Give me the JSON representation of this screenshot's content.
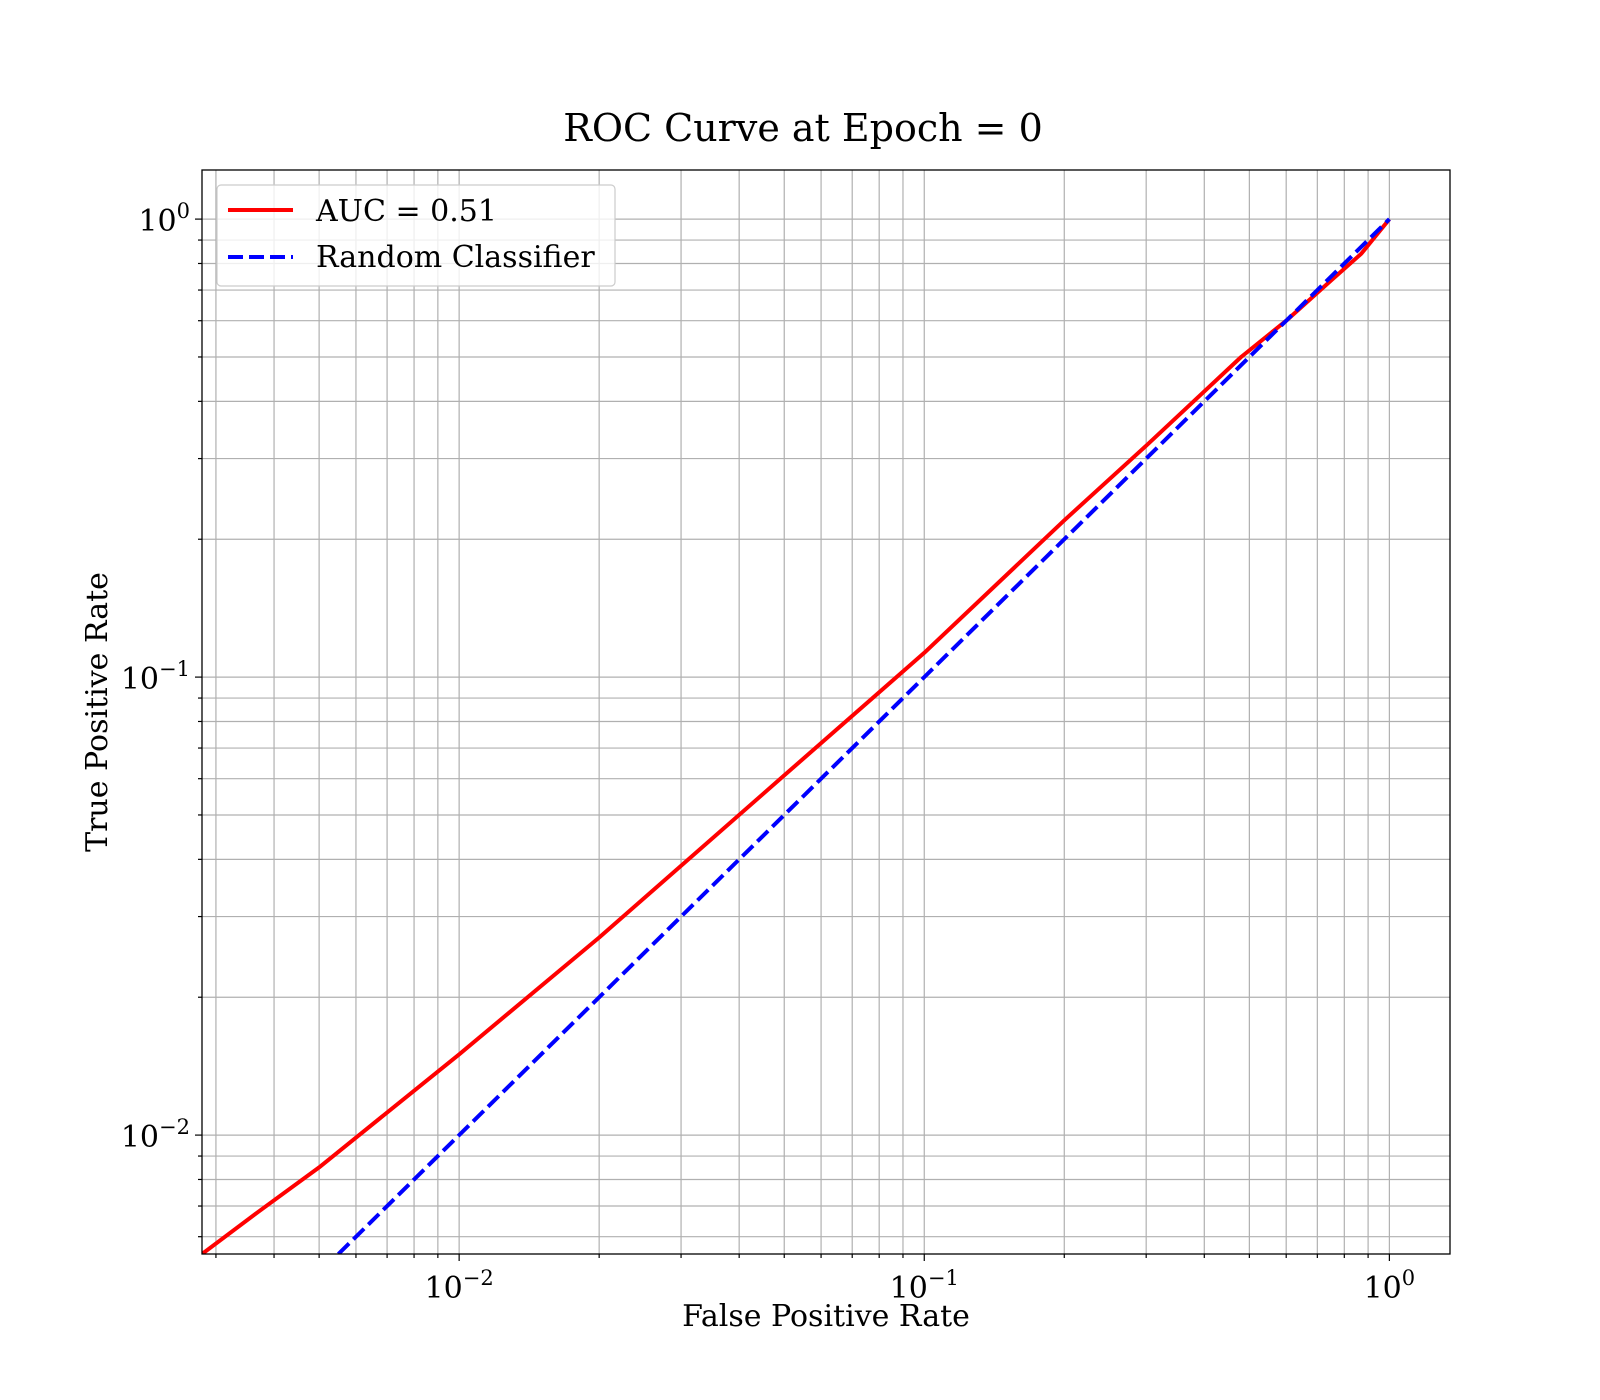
{
  "chart_data": {
    "type": "line",
    "title": "ROC Curve at Epoch = 0",
    "xlabel": "False Positive Rate",
    "ylabel": "True Positive Rate",
    "xscale": "log",
    "yscale": "log",
    "xlim": [
      0.0028,
      1.35
    ],
    "ylim": [
      0.0055,
      1.28
    ],
    "grid": true,
    "grid_minor": true,
    "legend_position": "upper left",
    "x_ticks": [
      {
        "value": 0.01,
        "base": "10",
        "exp": "−2"
      },
      {
        "value": 0.1,
        "base": "10",
        "exp": "−1"
      },
      {
        "value": 1,
        "base": "10",
        "exp": "0"
      }
    ],
    "y_ticks": [
      {
        "value": 0.01,
        "base": "10",
        "exp": "−2"
      },
      {
        "value": 0.1,
        "base": "10",
        "exp": "−1"
      },
      {
        "value": 1,
        "base": "10",
        "exp": "0"
      }
    ],
    "series": [
      {
        "name": "AUC = 0.51",
        "color": "#ff0000",
        "dash": "solid",
        "x": [
          0.0028,
          0.0037,
          0.005,
          0.01,
          0.02,
          0.05,
          0.1,
          0.2,
          0.3,
          0.48,
          0.6,
          0.75,
          0.87,
          1.0
        ],
        "y": [
          0.0055,
          0.0068,
          0.0085,
          0.015,
          0.027,
          0.061,
          0.113,
          0.22,
          0.32,
          0.5,
          0.6,
          0.735,
          0.84,
          1.0
        ]
      },
      {
        "name": "Random Classifier",
        "color": "#0000ff",
        "dash": "dashed",
        "x": [
          0.0055,
          1.0
        ],
        "y": [
          0.0055,
          1.0
        ]
      }
    ]
  }
}
